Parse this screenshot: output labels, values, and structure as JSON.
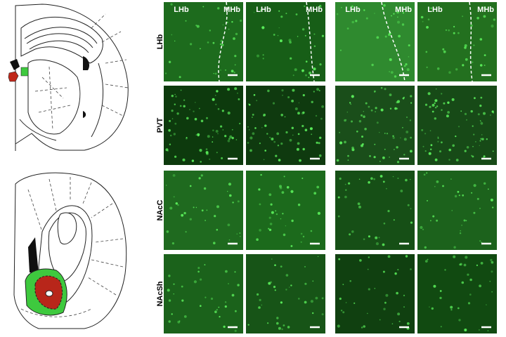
{
  "row_labels": [
    "LHb",
    "PVT",
    "NAcC",
    "NAcSh"
  ],
  "top_row_panels": [
    {
      "left": "LHb",
      "right": "MHb"
    },
    {
      "left": "LHb",
      "right": "MHb"
    },
    {
      "left": "LHb",
      "right": "MHb"
    },
    {
      "left": "LHb",
      "right": "MHb"
    }
  ]
}
